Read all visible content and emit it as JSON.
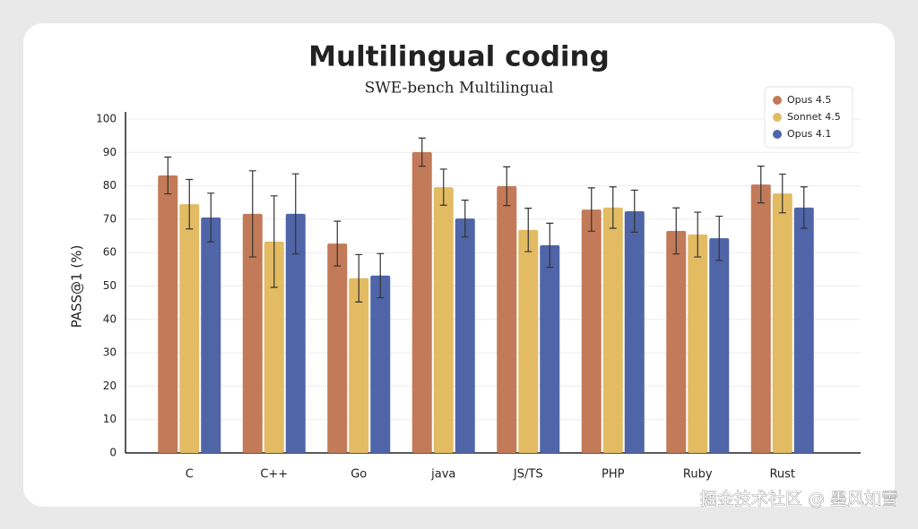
{
  "chart_data": {
    "type": "bar",
    "title": "Multilingual coding",
    "subtitle": "SWE-bench Multilingual",
    "y_label": "PASS@1 (%)",
    "categories": [
      "C",
      "C++",
      "Go",
      "java",
      "JS/TS",
      "PHP",
      "Ruby",
      "Rust"
    ],
    "series": [
      {
        "name": "Opus 4.5",
        "color": "#c27a58",
        "values": [
          83.1,
          71.6,
          62.7,
          90.1,
          79.9,
          72.9,
          66.5,
          80.4
        ],
        "errors": [
          5.5,
          12.9,
          6.7,
          4.2,
          5.8,
          6.5,
          6.9,
          5.5
        ]
      },
      {
        "name": "Sonnet 4.5",
        "color": "#e2bb63",
        "values": [
          74.5,
          63.3,
          52.3,
          79.6,
          66.8,
          73.5,
          65.4,
          77.7
        ],
        "errors": [
          7.4,
          13.7,
          7.1,
          5.4,
          6.5,
          6.2,
          6.7,
          5.8
        ]
      },
      {
        "name": "Opus 4.1",
        "color": "#4f65a8",
        "values": [
          70.5,
          71.6,
          53.1,
          70.2,
          62.2,
          72.4,
          64.3,
          73.5
        ],
        "errors": [
          7.3,
          12.0,
          6.6,
          5.5,
          6.6,
          6.3,
          6.6,
          6.2
        ]
      }
    ],
    "ylim": [
      0,
      100
    ],
    "yticks": [
      0,
      10,
      20,
      30,
      40,
      50,
      60,
      70,
      80,
      90,
      100
    ],
    "grid": true,
    "legend": "top-right"
  },
  "watermark": "掘金技术社区 @ 墨风如雪"
}
